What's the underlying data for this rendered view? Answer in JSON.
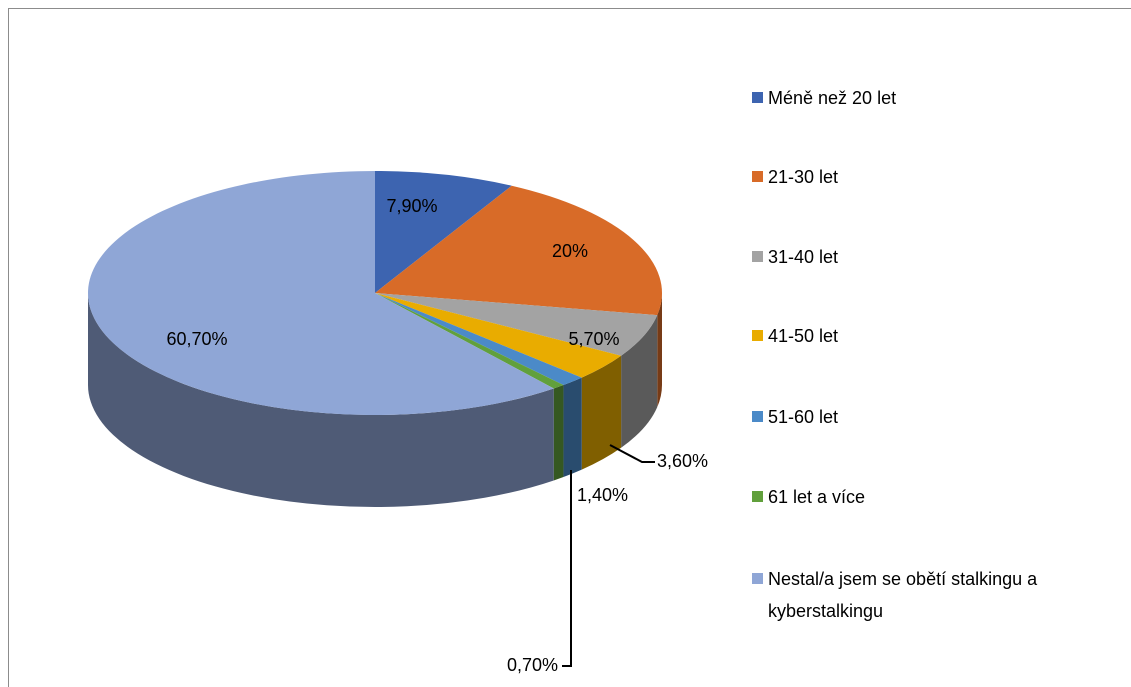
{
  "chart_data": {
    "type": "pie",
    "categories": [
      "Méně než 20 let",
      "21-30 let",
      "31-40 let",
      "41-50 let",
      "51-60 let",
      "61 let a více",
      "Nestal/a jsem se obětí stalkingu a kyberstalkingu"
    ],
    "values": [
      7.9,
      20,
      5.7,
      3.6,
      1.4,
      0.7,
      60.7
    ],
    "value_labels": [
      "7,90%",
      "20%",
      "5,70%",
      "3,60%",
      "1,40%",
      "0,70%",
      "60,70%"
    ],
    "colors": [
      "#3d64b0",
      "#d86b28",
      "#a3a3a3",
      "#e9ac00",
      "#4b8ac8",
      "#61a03c",
      "#8fa6d6"
    ],
    "legend": "right"
  }
}
